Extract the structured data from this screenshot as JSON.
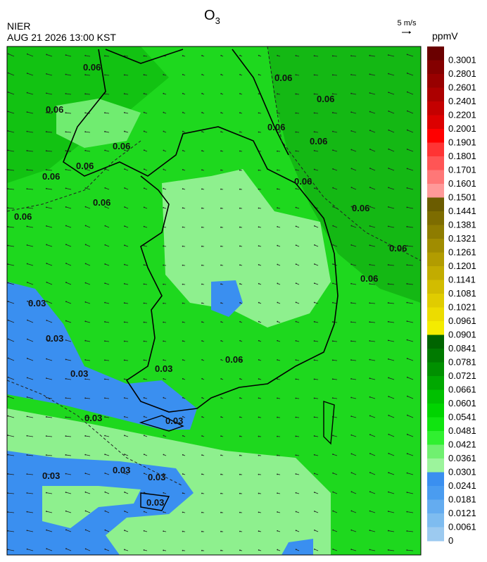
{
  "header": {
    "agency": "NIER",
    "datetime": "AUG 21 2026 13:00 KST"
  },
  "title": {
    "main": "O",
    "sub": "3"
  },
  "wind_scale": "5 m/s",
  "colorbar": {
    "unit": "ppmV",
    "ticks": [
      0.3001,
      0.2801,
      0.2601,
      0.2401,
      0.2201,
      0.2001,
      0.1901,
      0.1801,
      0.1701,
      0.1601,
      0.1501,
      0.1441,
      0.1381,
      0.1321,
      0.1261,
      0.1201,
      0.1141,
      0.1081,
      0.1021,
      0.0961,
      0.0901,
      0.0841,
      0.0781,
      0.0721,
      0.0661,
      0.0601,
      0.0541,
      0.0481,
      0.0421,
      0.0361,
      0.0301,
      0.0241,
      0.0181,
      0.0121,
      0.0061,
      0
    ],
    "colors": [
      "#6a0000",
      "#840000",
      "#980000",
      "#ac0000",
      "#c40000",
      "#dc0000",
      "#ff0000",
      "#ff3434",
      "#ff5555",
      "#ff7777",
      "#ff9999",
      "#6b5c00",
      "#7d6c00",
      "#8e7c00",
      "#a08c00",
      "#b29c00",
      "#c2ac00",
      "#d2bc00",
      "#e0cc00",
      "#ecdc00",
      "#f4ec00",
      "#006400",
      "#007a00",
      "#009000",
      "#00a800",
      "#00c000",
      "#00d400",
      "#10e410",
      "#30f030",
      "#70f070",
      "#9cf49c",
      "#3a8ff0",
      "#4a9cf0",
      "#64acf0",
      "#7ebcf0",
      "#9ccaf0"
    ]
  },
  "contour_labels": [
    0.06,
    0.06,
    0.06,
    0.06,
    0.06,
    0.06,
    0.06,
    0.06,
    0.06,
    0.06,
    0.06,
    0.06,
    0.06,
    0.06,
    0.06,
    0.06,
    0.03,
    0.03,
    0.03,
    0.03,
    0.03,
    0.03,
    0.03,
    0.03,
    0.03,
    0.03
  ]
}
